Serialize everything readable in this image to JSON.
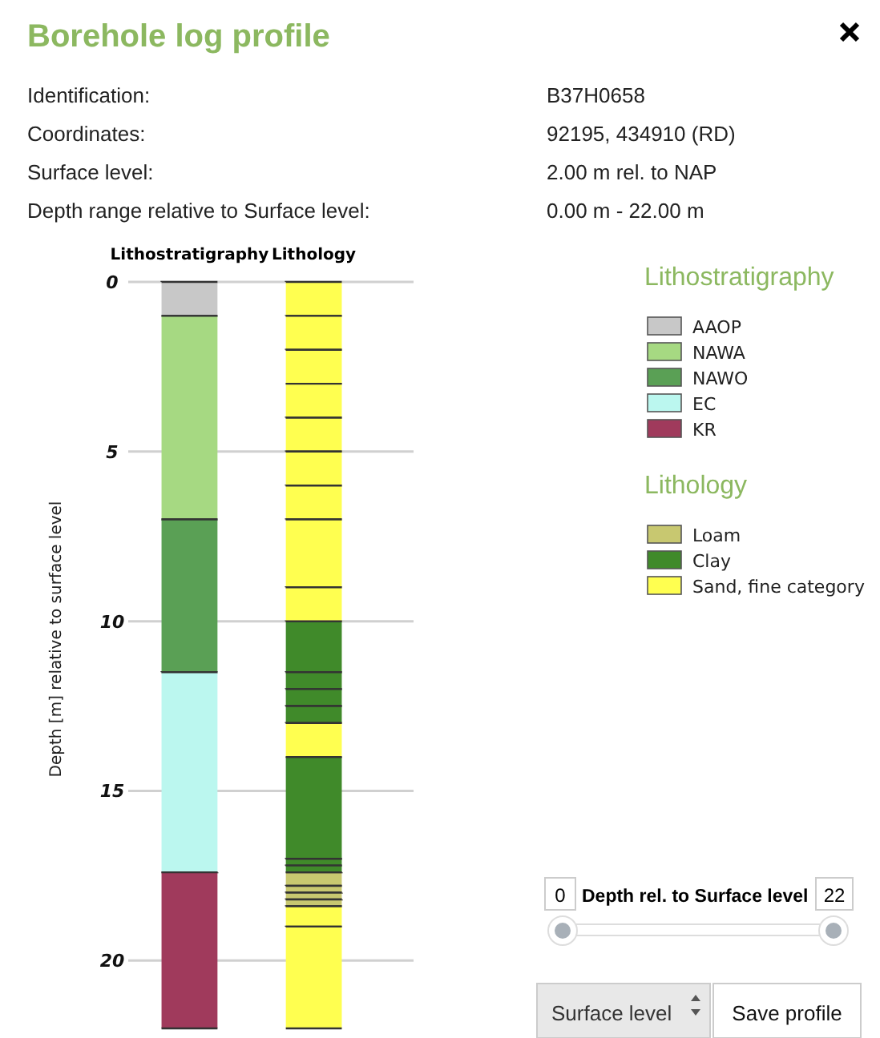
{
  "chart_data": {
    "type": "bar",
    "title": "Borehole log profile",
    "ylabel": "Depth [m] relative to surface level",
    "categories": [
      "Lithostratigraphy",
      "Lithology"
    ],
    "ylim": [
      22,
      0
    ],
    "yticks": [
      0,
      5,
      10,
      15,
      20
    ],
    "grid": "y",
    "legend": "right",
    "annotations": [
      "Identification:",
      "B37H0658",
      "Coordinates:",
      "92195, 434910 (RD)",
      "Surface level:",
      "2.00 m rel. to NAP",
      "Depth range relative to Surface level:",
      "0.00 m - 22.00 m",
      "0",
      "Depth rel. to Surface level",
      "22",
      "Surface level",
      "Save profile"
    ],
    "series": [
      {
        "name": "AAOP",
        "color": "#c8c8c8",
        "values": [
          1,
          null
        ],
        "base": [
          0,
          null
        ]
      },
      {
        "name": "NAWA",
        "color": "#a6d982",
        "values": [
          6,
          null
        ],
        "base": [
          1,
          null
        ]
      },
      {
        "name": "NAWO",
        "color": "#5aa055",
        "values": [
          4.5,
          null
        ],
        "base": [
          7,
          null
        ]
      },
      {
        "name": "EC",
        "color": "#bbf7ef",
        "values": [
          5.9,
          null
        ],
        "base": [
          11.5,
          null
        ]
      },
      {
        "name": "KR",
        "color": "#a03a5c",
        "values": [
          4.6,
          null
        ],
        "base": [
          17.4,
          null
        ]
      },
      {
        "name": "Loam",
        "color": "#c8c870",
        "values": [
          null,
          0.4
        ],
        "base": [
          null,
          17.4
        ]
      },
      {
        "color": "#c8c870",
        "values": [
          null,
          0.2
        ],
        "base": [
          null,
          17.8
        ]
      },
      {
        "color": "#c8c870",
        "values": [
          null,
          0.2
        ],
        "base": [
          null,
          18
        ]
      },
      {
        "color": "#c8c870",
        "values": [
          null,
          0.2
        ],
        "base": [
          null,
          18.2
        ]
      },
      {
        "name": "Clay",
        "color": "#408a2a",
        "values": [
          null,
          1.5
        ],
        "base": [
          null,
          10
        ]
      },
      {
        "color": "#408a2a",
        "values": [
          null,
          0.5
        ],
        "base": [
          null,
          11.5
        ]
      },
      {
        "color": "#408a2a",
        "values": [
          null,
          0.5
        ],
        "base": [
          null,
          12
        ]
      },
      {
        "color": "#408a2a",
        "values": [
          null,
          0.5
        ],
        "base": [
          null,
          12.5
        ]
      },
      {
        "color": "#408a2a",
        "values": [
          null,
          3
        ],
        "base": [
          null,
          14
        ]
      },
      {
        "color": "#408a2a",
        "values": [
          null,
          0.2
        ],
        "base": [
          null,
          17
        ]
      },
      {
        "color": "#408a2a",
        "values": [
          null,
          0.2
        ],
        "base": [
          null,
          17.2
        ]
      },
      {
        "name": "Sand, fine category",
        "color": "#ffff50",
        "values": [
          null,
          1
        ],
        "base": [
          null,
          0
        ]
      },
      {
        "color": "#ffff50",
        "values": [
          null,
          1
        ],
        "base": [
          null,
          1
        ]
      },
      {
        "color": "#ffff50",
        "values": [
          null,
          1
        ],
        "base": [
          null,
          2
        ]
      },
      {
        "color": "#ffff50",
        "values": [
          null,
          1
        ],
        "base": [
          null,
          3
        ]
      },
      {
        "color": "#ffff50",
        "values": [
          null,
          1
        ],
        "base": [
          null,
          4
        ]
      },
      {
        "color": "#ffff50",
        "values": [
          null,
          1
        ],
        "base": [
          null,
          5
        ]
      },
      {
        "color": "#ffff50",
        "values": [
          null,
          1
        ],
        "base": [
          null,
          6
        ]
      },
      {
        "color": "#ffff50",
        "values": [
          null,
          2
        ],
        "base": [
          null,
          7
        ]
      },
      {
        "color": "#ffff50",
        "values": [
          null,
          1
        ],
        "base": [
          null,
          9
        ]
      },
      {
        "color": "#ffff50",
        "values": [
          null,
          1
        ],
        "base": [
          null,
          13
        ]
      },
      {
        "color": "#ffff50",
        "values": [
          null,
          0.6
        ],
        "base": [
          null,
          18.4
        ]
      },
      {
        "color": "#ffff50",
        "values": [
          null,
          3
        ],
        "base": [
          null,
          19
        ]
      }
    ]
  }
}
